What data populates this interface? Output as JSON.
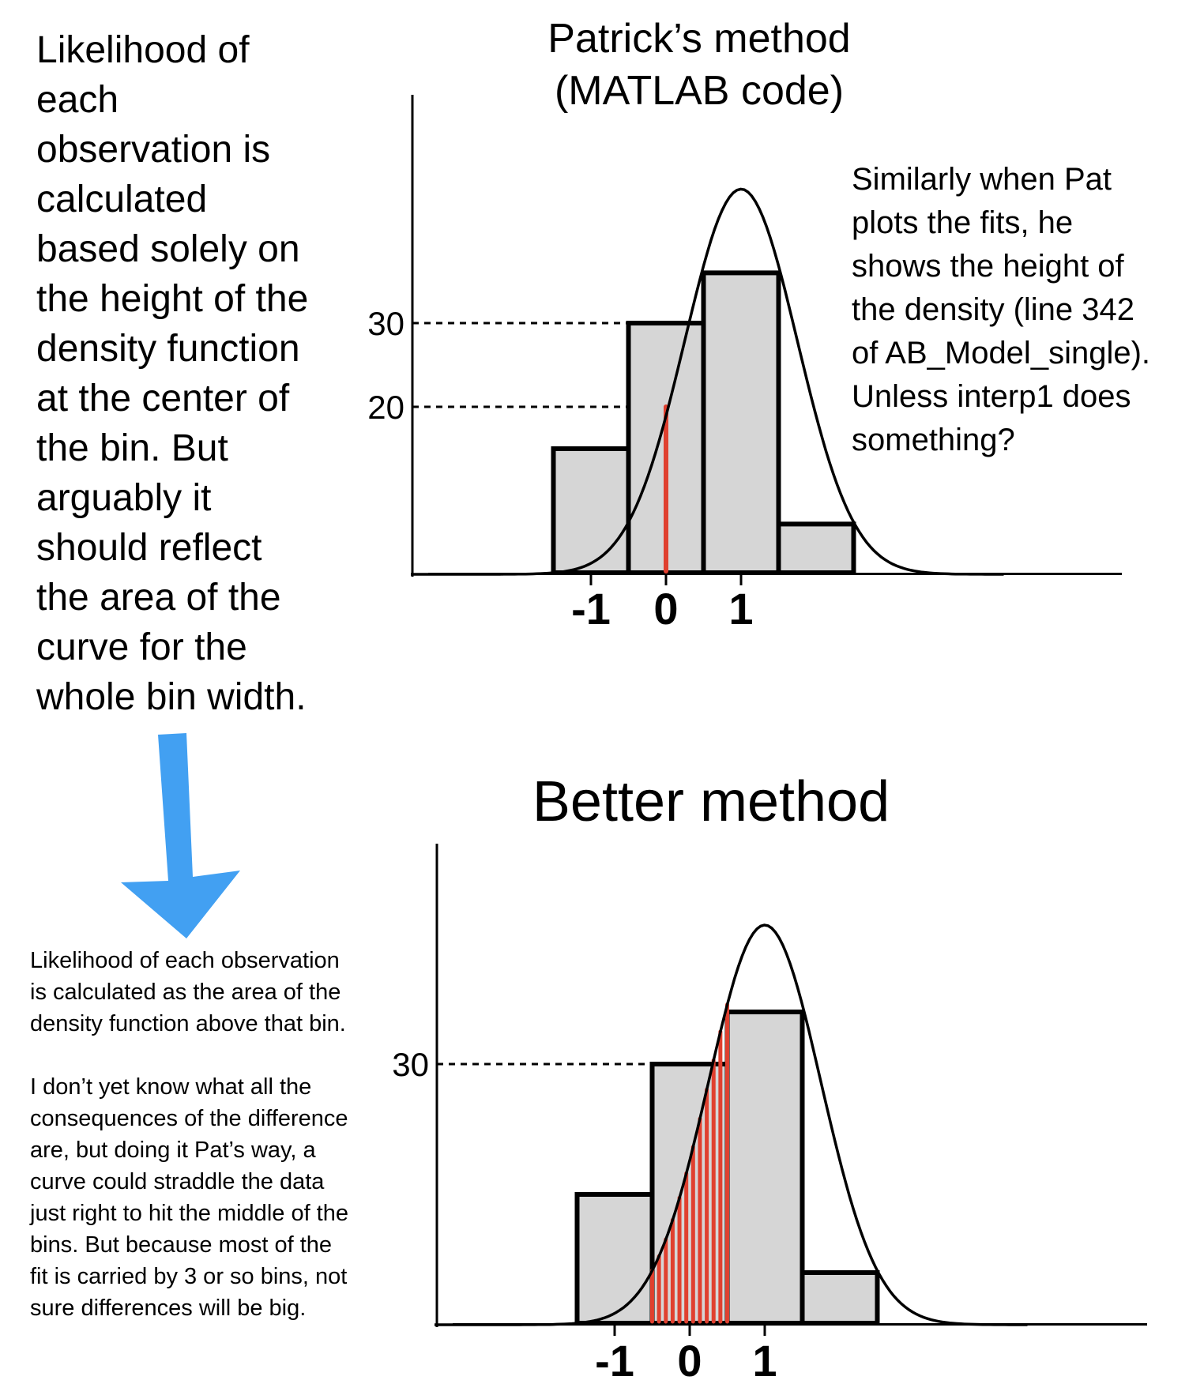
{
  "left_note": "Likelihood of\neach\nobservation is\ncalculated\nbased solely on\nthe height of the\ndensity function\nat the center of\nthe bin. But\narguably it\nshould reflect\nthe area of the\ncurve for the\nwhole bin width.",
  "top_title": "Patrick’s method\n(MATLAB code)",
  "right_note": "Similarly when Pat\nplots the fits, he\nshows the height of\nthe density (line 342\nof AB_Model_single).\nUnless interp1 does\nsomething?",
  "bottom_title": "Better method",
  "bottom_note": "Likelihood of each observation\nis calculated as the area of the\ndensity function above that bin.\n\nI don’t yet know what all the\nconsequences of the difference\nare, but doing it Pat’s way, a\ncurve could straddle the data\njust right to hit the middle of the\nbins. But because most of the\nfit is carried by 3 or so bins, not\nsure differences will be big.",
  "colors": {
    "bar_fill": "#d6d6d6",
    "outline": "#000000",
    "highlight": "#e0402f",
    "arrow": "#42a0f2"
  },
  "arrow_icon": "down-arrow-icon",
  "chart_data": [
    {
      "type": "bar",
      "title": "Patrick’s method (MATLAB code)",
      "x_ticks": [
        "-1",
        "0",
        "1"
      ],
      "bins": [
        {
          "x": -1,
          "value": 15
        },
        {
          "x": 0,
          "value": 30
        },
        {
          "x": 1,
          "value": 36
        },
        {
          "x": 2,
          "value": 6
        }
      ],
      "reference_lines": [
        {
          "label": "30",
          "value": 30
        },
        {
          "label": "20",
          "value": 20
        }
      ],
      "curve": {
        "mean": 1,
        "peak": 46,
        "sd": 0.75
      },
      "highlight": {
        "method": "height at bin center",
        "x": 0,
        "value": 20
      }
    },
    {
      "type": "bar",
      "title": "Better method",
      "x_ticks": [
        "-1",
        "0",
        "1"
      ],
      "bins": [
        {
          "x": -1,
          "value": 15
        },
        {
          "x": 0,
          "value": 30
        },
        {
          "x": 1,
          "value": 36
        },
        {
          "x": 2,
          "value": 6
        }
      ],
      "reference_lines": [
        {
          "label": "30",
          "value": 30
        }
      ],
      "curve": {
        "mean": 1,
        "peak": 46,
        "sd": 0.75
      },
      "highlight": {
        "method": "area over bin",
        "from": -0.5,
        "to": 0.5
      }
    }
  ]
}
